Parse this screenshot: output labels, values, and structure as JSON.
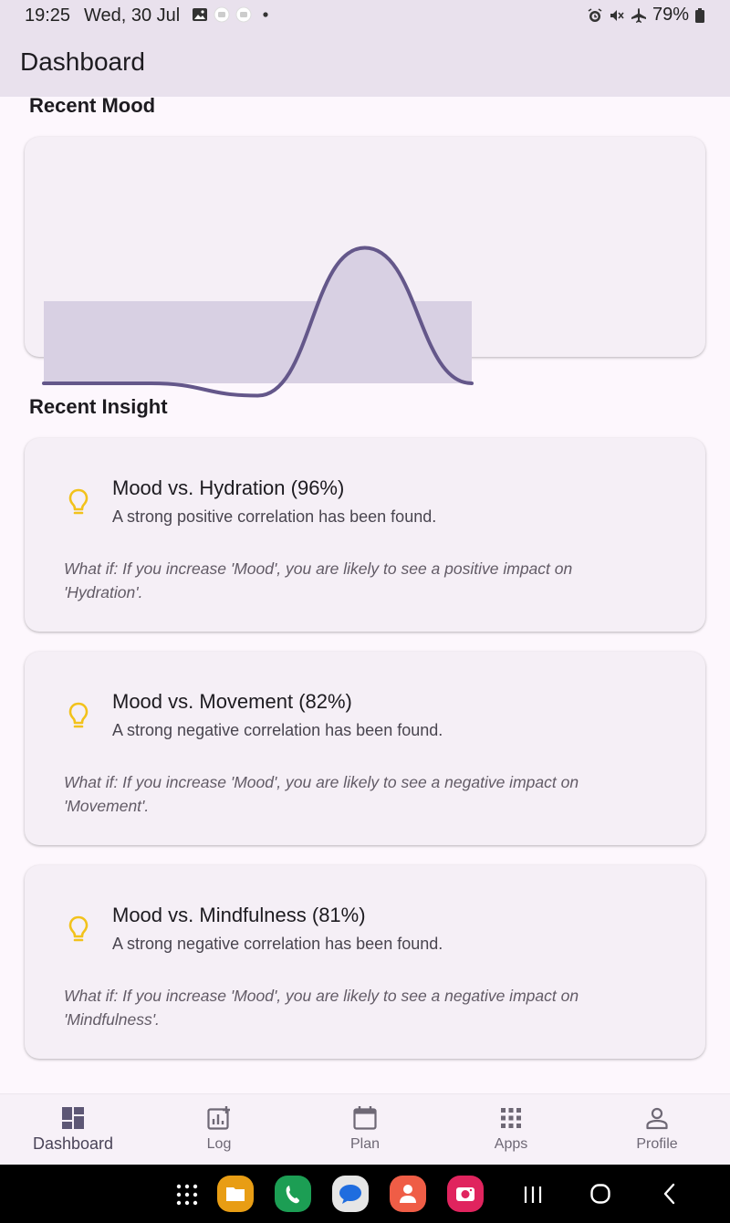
{
  "status_bar": {
    "time": "19:25",
    "date": "Wed, 30 Jul",
    "battery": "79%"
  },
  "app_bar": {
    "title": "Dashboard"
  },
  "sections": {
    "mood_title": "Recent Mood",
    "insight_title": "Recent Insight"
  },
  "chart_data": {
    "type": "line",
    "points": [
      0,
      0,
      -0.15,
      1.65,
      0
    ],
    "area_band": [
      0,
      1
    ],
    "color": "#64578a",
    "fill": "#d8d0e3"
  },
  "insights": [
    {
      "title": "Mood vs. Hydration (96%)",
      "description": "A strong positive correlation has been found.",
      "what_if": "What if: If you increase 'Mood', you are likely to see a positive impact on 'Hydration'."
    },
    {
      "title": "Mood vs. Movement (82%)",
      "description": "A strong negative correlation has been found.",
      "what_if": "What if: If you increase 'Mood', you are likely to see a negative impact on 'Movement'."
    },
    {
      "title": "Mood vs. Mindfulness (81%)",
      "description": "A strong negative correlation has been found.",
      "what_if": "What if: If you increase 'Mood', you are likely to see a negative impact on 'Mindfulness'."
    }
  ],
  "insight_icon": "lightbulb-icon",
  "insight_icon_color": "#f2c21b",
  "bottom_nav": {
    "items": [
      {
        "label": "Dashboard",
        "icon": "dashboard-icon",
        "active": true
      },
      {
        "label": "Log",
        "icon": "log-chart-icon",
        "active": false
      },
      {
        "label": "Plan",
        "icon": "calendar-icon",
        "active": false
      },
      {
        "label": "Apps",
        "icon": "apps-grid-icon",
        "active": false
      },
      {
        "label": "Profile",
        "icon": "person-icon",
        "active": false
      }
    ]
  },
  "system_nav": {
    "apps": [
      "app-drawer-icon",
      "files-app-icon",
      "phone-app-icon",
      "messages-app-icon",
      "contacts-app-icon",
      "camera-app-icon"
    ],
    "buttons": [
      "recents-button",
      "home-button",
      "back-button"
    ]
  }
}
